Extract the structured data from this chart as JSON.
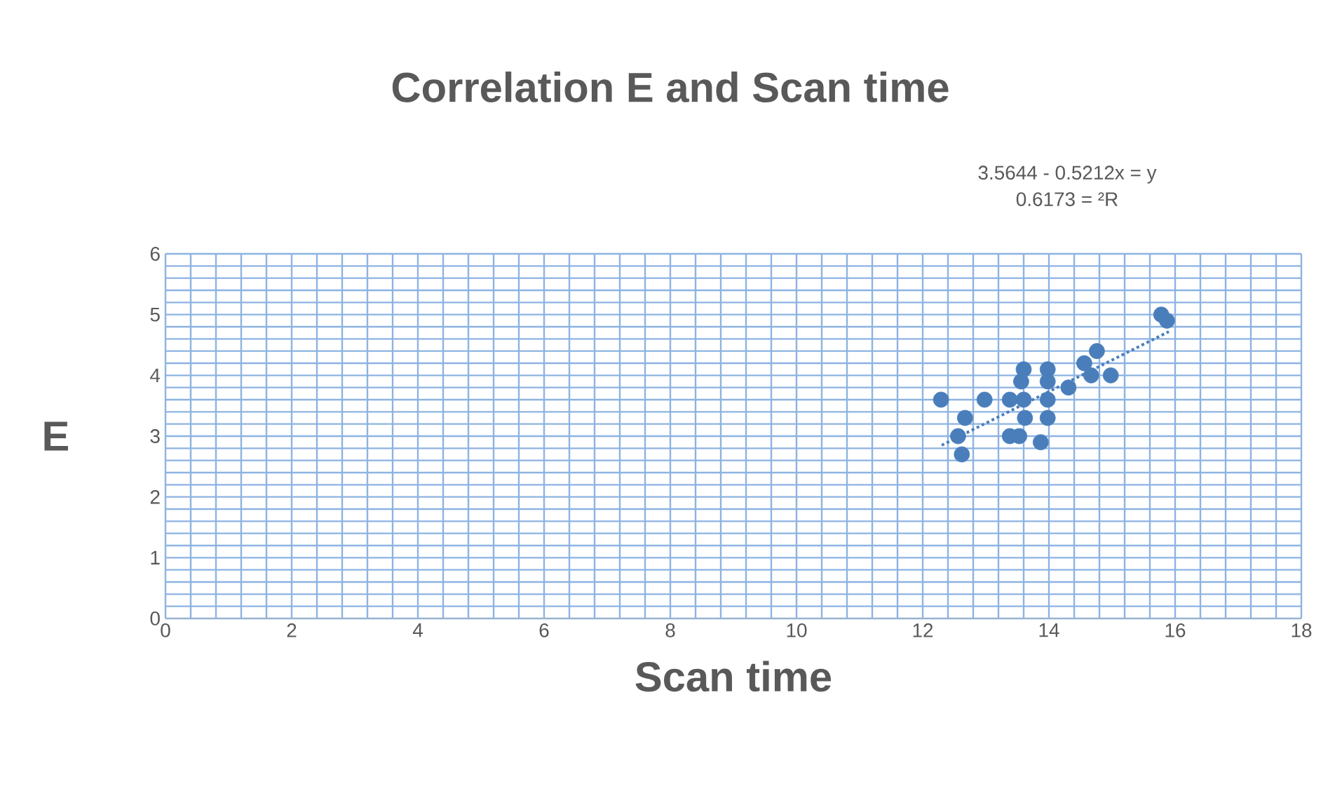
{
  "chart_data": {
    "type": "scatter",
    "title": "Correlation E and Scan time",
    "xlabel": "Scan time",
    "ylabel": "E",
    "annotations": [
      "3.5644 - 0.5212x = y",
      "0.6173 = ²R"
    ],
    "xlim": [
      0,
      18
    ],
    "xticks": [
      0,
      2,
      4,
      6,
      8,
      10,
      12,
      14,
      16,
      18
    ],
    "ylim": [
      0,
      6
    ],
    "yticks": [
      0,
      1,
      2,
      3,
      4,
      5,
      6
    ],
    "grid": true,
    "marker": "circle",
    "series": [
      {
        "color": "#4a7ebb",
        "x": [
          12.29,
          12.67,
          12.56,
          12.62,
          12.98,
          13.38,
          13.6,
          13.56,
          13.6,
          13.62,
          13.38,
          13.53,
          13.87,
          13.98,
          13.98,
          13.98,
          13.98,
          14.31,
          14.56,
          14.76,
          14.67,
          14.98,
          15.78,
          15.87
        ],
        "values": [
          3.6,
          3.3,
          3.0,
          2.7,
          3.6,
          3.6,
          4.1,
          3.9,
          3.6,
          3.3,
          3.0,
          3.0,
          2.9,
          4.1,
          3.9,
          3.6,
          3.3,
          3.8,
          4.2,
          4.4,
          4.0,
          4.0,
          5.0,
          4.9
        ]
      },
      {
        "type": "line",
        "color": "#4a7ebb",
        "line_style": "dotted",
        "marker": "none",
        "x": [
          12.3,
          15.9
        ],
        "values": [
          2.85,
          4.72
        ]
      }
    ]
  }
}
